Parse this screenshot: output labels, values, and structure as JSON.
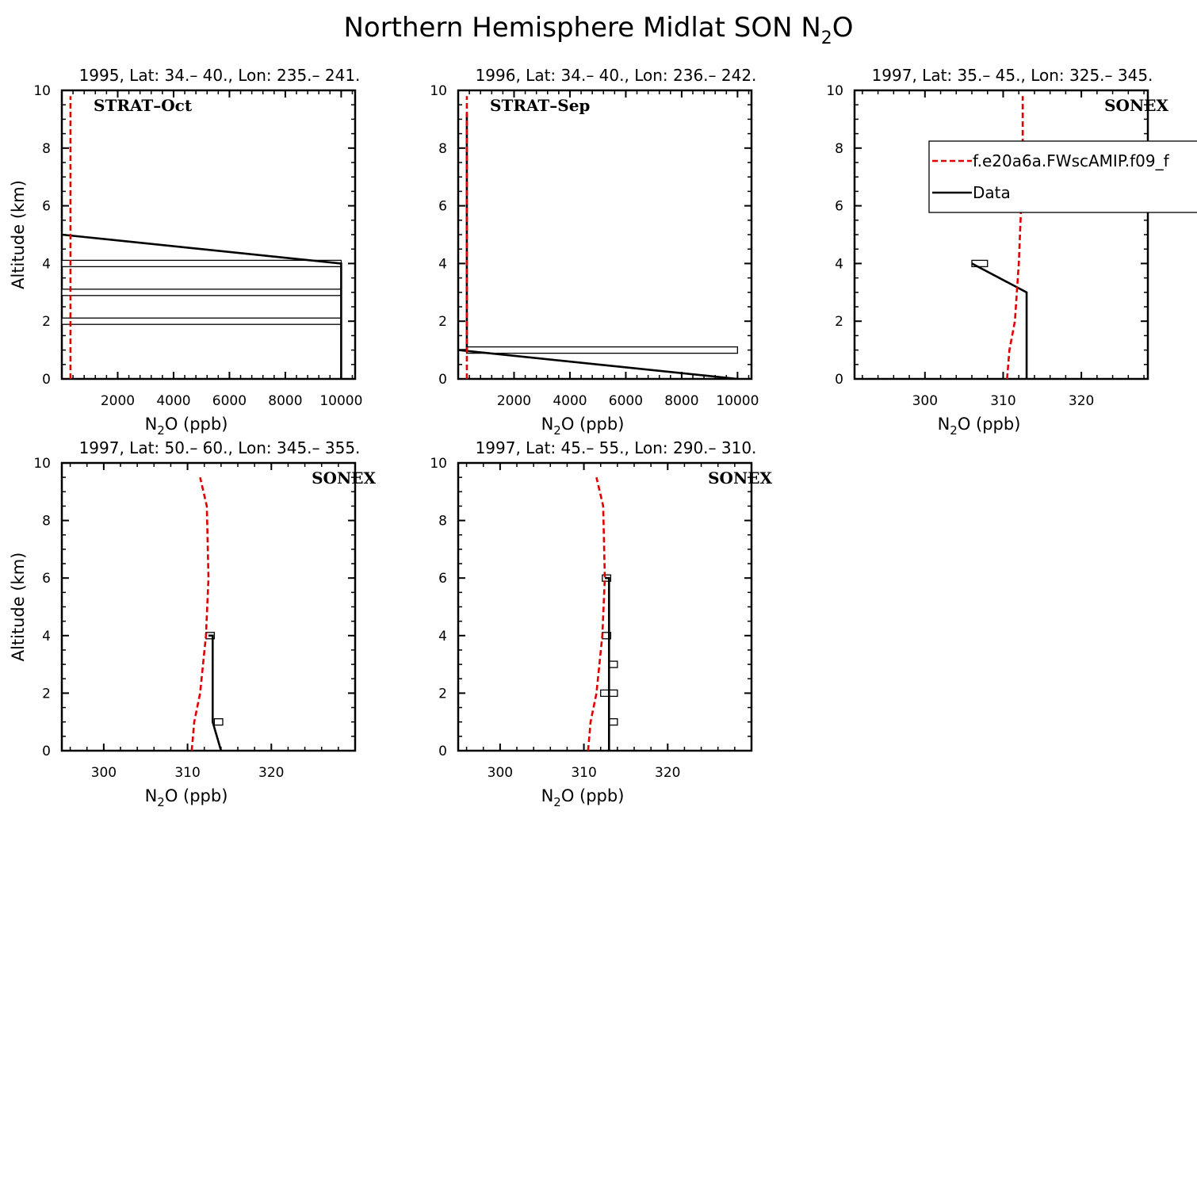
{
  "figure": {
    "title_main": "Northern Hemisphere Midlat SON N",
    "title_sub": "2",
    "title_tail": "O"
  },
  "legend": {
    "model": "f.e20a6a.FWscAMIP.f09_f",
    "data": "Data",
    "model_color": "#e00000",
    "data_color": "#000000"
  },
  "chart_data": [
    {
      "type": "line",
      "title": "1995, Lat: 34.– 40., Lon: 235.– 241.",
      "annotation": "STRAT–Oct",
      "xlabel": "N2O (ppb)",
      "ylabel": "Altitude (km)",
      "xlim": [
        0,
        10500
      ],
      "ylim": [
        0,
        10
      ],
      "xticks": [
        2000,
        4000,
        6000,
        8000,
        10000
      ],
      "yticks": [
        0,
        2,
        4,
        6,
        8,
        10
      ],
      "model": {
        "x": [
          310,
          310,
          310,
          310,
          310,
          310
        ],
        "y": [
          0,
          2,
          4,
          6,
          8,
          9.8
        ]
      },
      "data": {
        "x": [
          0,
          10000,
          10000
        ],
        "y": [
          5,
          4,
          0
        ]
      },
      "boxes": [
        {
          "x": [
            0,
            10000
          ],
          "y": 4
        },
        {
          "x": [
            0,
            10000
          ],
          "y": 3
        },
        {
          "x": [
            0,
            10000
          ],
          "y": 2
        }
      ]
    },
    {
      "type": "line",
      "title": "1996, Lat: 34.– 40., Lon: 236.– 242.",
      "annotation": "STRAT–Sep",
      "xlabel": "N2O (ppb)",
      "ylabel": "",
      "xlim": [
        0,
        10500
      ],
      "ylim": [
        0,
        10
      ],
      "xticks": [
        2000,
        4000,
        6000,
        8000,
        10000
      ],
      "yticks": [
        0,
        2,
        4,
        6,
        8,
        10
      ],
      "model": {
        "x": [
          310,
          310,
          310,
          310,
          310,
          310
        ],
        "y": [
          0,
          2,
          4,
          6,
          8,
          9.8
        ]
      },
      "data": {
        "x": [
          10000,
          0,
          310,
          310,
          310
        ],
        "y": [
          0,
          1,
          1,
          5,
          9.2
        ]
      },
      "boxes": [
        {
          "x": [
            300,
            10000
          ],
          "y": 1
        }
      ]
    },
    {
      "type": "line",
      "title": "1997, Lat: 35.– 45., Lon: 325.– 345.",
      "annotation": "SONEX",
      "xlabel": "N2O (ppb)",
      "ylabel": "",
      "xlim": [
        291,
        328.5
      ],
      "ylim": [
        0,
        10
      ],
      "xticks": [
        300,
        310,
        320
      ],
      "yticks": [
        0,
        2,
        4,
        6,
        8,
        10
      ],
      "legend": true,
      "model": {
        "x": [
          310.5,
          310.8,
          311.5,
          312,
          312.3,
          312.5,
          312.5
        ],
        "y": [
          0,
          1,
          2,
          4,
          6,
          8,
          9.8
        ]
      },
      "data": {
        "x": [
          313,
          313,
          306
        ],
        "y": [
          0,
          3,
          4
        ]
      },
      "boxes": [
        {
          "x": [
            306,
            308
          ],
          "y": 4
        }
      ]
    },
    {
      "type": "line",
      "title": "1997, Lat: 50.– 60., Lon: 345.– 355.",
      "annotation": "SONEX",
      "xlabel": "N2O (ppb)",
      "ylabel": "Altitude (km)",
      "xlim": [
        295,
        330
      ],
      "ylim": [
        0,
        10
      ],
      "xticks": [
        300,
        310,
        320
      ],
      "yticks": [
        0,
        2,
        4,
        6,
        8,
        10
      ],
      "model": {
        "x": [
          310.5,
          310.8,
          311.5,
          312.2,
          312.5,
          312.3,
          311.5
        ],
        "y": [
          0,
          1,
          2,
          4,
          6,
          8.5,
          9.5
        ]
      },
      "data": {
        "x": [
          314,
          313,
          313,
          312.5
        ],
        "y": [
          0,
          1,
          4,
          4
        ]
      },
      "boxes": [
        {
          "x": [
            312.2,
            313.2
          ],
          "y": 4
        },
        {
          "x": [
            313.2,
            314.2
          ],
          "y": 1
        }
      ]
    },
    {
      "type": "line",
      "title": "1997, Lat: 45.– 55., Lon: 290.– 310.",
      "annotation": "SONEX",
      "xlabel": "N2O (ppb)",
      "ylabel": "",
      "xlim": [
        295,
        330
      ],
      "ylim": [
        0,
        10
      ],
      "xticks": [
        300,
        310,
        320
      ],
      "yticks": [
        0,
        2,
        4,
        6,
        8,
        10
      ],
      "model": {
        "x": [
          310.5,
          310.8,
          311.5,
          312.2,
          312.5,
          312.3,
          311.5
        ],
        "y": [
          0,
          1,
          2,
          4,
          6,
          8.5,
          9.5
        ]
      },
      "data": {
        "x": [
          313,
          313,
          312.5
        ],
        "y": [
          0,
          6,
          6
        ]
      },
      "boxes": [
        {
          "x": [
            312.2,
            313.2
          ],
          "y": 6
        },
        {
          "x": [
            312.2,
            313.2
          ],
          "y": 4
        },
        {
          "x": [
            313,
            314
          ],
          "y": 3
        },
        {
          "x": [
            312,
            314
          ],
          "y": 2
        },
        {
          "x": [
            313,
            314
          ],
          "y": 1
        }
      ]
    }
  ]
}
